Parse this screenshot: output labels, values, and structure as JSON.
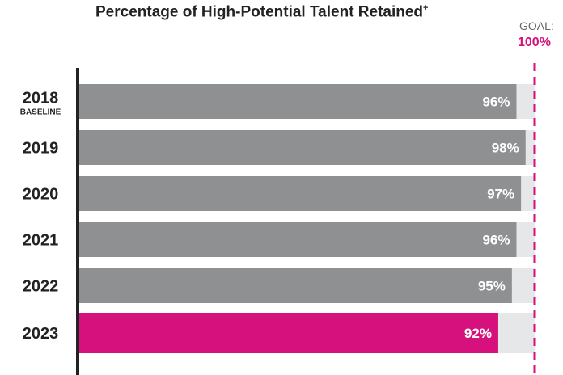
{
  "chart_data": {
    "type": "bar",
    "orientation": "horizontal",
    "title": "Percentage of High-Potential Talent Retained",
    "title_marker": "+",
    "categories": [
      {
        "label": "2018",
        "sublabel": "BASELINE"
      },
      {
        "label": "2019"
      },
      {
        "label": "2020"
      },
      {
        "label": "2021"
      },
      {
        "label": "2022"
      },
      {
        "label": "2023"
      }
    ],
    "values": [
      96,
      98,
      97,
      96,
      95,
      92
    ],
    "data_labels": [
      "96%",
      "98%",
      "97%",
      "96%",
      "95%",
      "92%"
    ],
    "xlim": [
      0,
      100
    ],
    "grid": false,
    "goal": {
      "label": "GOAL:",
      "value_label": "100%",
      "value": 100
    },
    "colors": {
      "bar": "#8e9092",
      "highlight_bar": "#d6117d",
      "track": "#e6e7e8",
      "goal_line": "#d6117d",
      "axis": "#222222"
    },
    "highlight_index": 5
  }
}
